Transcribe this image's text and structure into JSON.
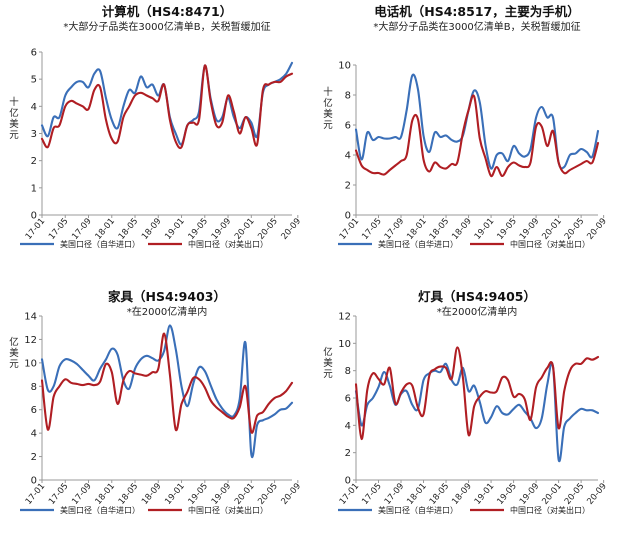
{
  "colors": {
    "us_series": "#3a6fb8",
    "cn_series": "#b01e23",
    "axis": "#999999"
  },
  "chart_data": [
    {
      "type": "line",
      "title": "计算机（HS4:8471）",
      "subtitle": "*大部分子品类在3000亿清单B，关税暂缓加征",
      "ylabel": "十亿美元",
      "ylim": [
        0,
        6
      ],
      "yticks": [
        "0",
        "1",
        "2",
        "3",
        "4",
        "5",
        "6"
      ],
      "xticks": [
        "17-01",
        "17-05",
        "17-09",
        "18-01",
        "18-05",
        "18-09",
        "19-01",
        "19-05",
        "19-09",
        "20-01",
        "20-05",
        "20-09"
      ],
      "series": [
        {
          "name": "美国口径（自华进口）",
          "color": "#3a6fb8",
          "values": [
            3.3,
            2.9,
            3.6,
            3.6,
            4.4,
            4.7,
            4.9,
            4.9,
            4.7,
            5.2,
            5.3,
            4.3,
            3.5,
            3.2,
            4.0,
            4.6,
            4.5,
            5.1,
            4.7,
            4.8,
            4.4,
            4.8,
            3.6,
            3.0,
            2.6,
            3.3,
            3.5,
            3.8,
            5.5,
            4.3,
            3.5,
            3.6,
            4.3,
            3.6,
            3.2,
            3.6,
            3.4,
            2.9,
            4.5,
            4.8,
            4.9,
            5.0,
            5.2,
            5.6
          ]
        },
        {
          "name": "中国口径（对美出口）",
          "color": "#b01e23",
          "values": [
            2.8,
            2.5,
            3.2,
            3.3,
            4.0,
            4.2,
            4.1,
            4.0,
            3.9,
            4.6,
            4.7,
            3.5,
            2.8,
            2.7,
            3.6,
            4.0,
            4.4,
            4.5,
            4.4,
            4.3,
            4.2,
            4.8,
            3.5,
            2.7,
            2.5,
            3.3,
            3.4,
            3.5,
            5.5,
            4.2,
            3.3,
            3.4,
            4.4,
            3.8,
            3.0,
            3.6,
            3.2,
            2.6,
            4.6,
            4.8,
            4.9,
            4.9,
            5.1,
            5.2
          ]
        }
      ]
    },
    {
      "type": "line",
      "title": "电话机（HS4:8517，主要为手机）",
      "subtitle": "*大部分子品类在3000亿清单B，关税暂缓加征",
      "ylabel": "十亿美元",
      "ylim": [
        0,
        10
      ],
      "yticks": [
        "0",
        "2",
        "4",
        "6",
        "8",
        "10"
      ],
      "xticks": [
        "17-01",
        "17-05",
        "17-09",
        "18-01",
        "18-05",
        "18-09",
        "19-01",
        "19-05",
        "19-09",
        "20-01",
        "20-05",
        "20-09"
      ],
      "series": [
        {
          "name": "美国口径（自华进口）",
          "color": "#3a6fb8",
          "values": [
            5.7,
            3.7,
            5.5,
            5.0,
            5.2,
            5.1,
            5.1,
            5.2,
            5.2,
            7.0,
            9.3,
            8.4,
            5.3,
            4.2,
            5.5,
            5.2,
            5.3,
            5.0,
            4.9,
            5.3,
            7.0,
            8.3,
            7.5,
            4.7,
            3.1,
            4.0,
            4.1,
            3.6,
            4.6,
            4.1,
            3.9,
            4.4,
            6.5,
            7.2,
            6.5,
            6.5,
            3.5,
            3.2,
            4.0,
            4.1,
            4.4,
            4.2,
            3.9,
            5.6
          ]
        },
        {
          "name": "中国口径（对美出口）",
          "color": "#b01e23",
          "values": [
            4.3,
            3.3,
            3.0,
            2.8,
            2.8,
            2.7,
            3.0,
            3.3,
            3.6,
            4.0,
            6.3,
            6.4,
            3.7,
            2.9,
            3.5,
            3.2,
            3.1,
            3.4,
            3.5,
            5.5,
            7.0,
            7.9,
            5.1,
            3.8,
            2.6,
            3.2,
            2.6,
            3.2,
            3.5,
            3.3,
            3.2,
            3.5,
            5.9,
            5.9,
            4.6,
            5.6,
            3.5,
            2.8,
            3.0,
            3.2,
            3.4,
            3.6,
            3.5,
            4.8
          ]
        }
      ]
    },
    {
      "type": "line",
      "title": "家具（HS4:9403）",
      "subtitle": "*在2000亿清单内",
      "ylabel": "亿美元",
      "ylim": [
        0,
        14
      ],
      "yticks": [
        "0",
        "2",
        "4",
        "6",
        "8",
        "10",
        "12",
        "14"
      ],
      "xticks": [
        "17-01",
        "17-05",
        "17-09",
        "18-01",
        "18-05",
        "18-09",
        "19-01",
        "19-05",
        "19-09",
        "20-01",
        "20-05",
        "20-09"
      ],
      "series": [
        {
          "name": "美国口径（自华进口）",
          "color": "#3a6fb8",
          "values": [
            10.3,
            7.7,
            8.0,
            9.7,
            10.3,
            10.2,
            9.9,
            9.4,
            8.9,
            8.5,
            9.5,
            10.3,
            11.2,
            10.7,
            8.5,
            7.8,
            9.5,
            10.3,
            10.6,
            10.4,
            10.2,
            11.0,
            13.2,
            11.2,
            8.0,
            6.3,
            8.2,
            9.6,
            9.3,
            8.1,
            6.9,
            6.1,
            5.6,
            5.5,
            6.9,
            11.7,
            2.2,
            4.7,
            5.1,
            5.3,
            5.6,
            6.0,
            6.1,
            6.6
          ]
        },
        {
          "name": "中国口径（对美出口）",
          "color": "#b01e23",
          "values": [
            8.5,
            4.3,
            7.1,
            8.0,
            8.6,
            8.3,
            8.2,
            8.1,
            8.2,
            8.1,
            8.4,
            9.9,
            9.2,
            6.5,
            8.5,
            9.3,
            9.1,
            9.0,
            8.9,
            9.2,
            9.5,
            12.5,
            9.0,
            4.3,
            6.5,
            7.5,
            8.7,
            8.6,
            7.9,
            6.8,
            6.2,
            5.8,
            5.4,
            5.3,
            6.2,
            8.0,
            4.1,
            5.5,
            5.8,
            6.5,
            7.0,
            7.2,
            7.6,
            8.3
          ]
        }
      ]
    },
    {
      "type": "line",
      "title": "灯具（HS4:9405）",
      "subtitle": "*在2000亿清单内",
      "ylabel": "亿美元",
      "ylim": [
        0,
        12
      ],
      "yticks": [
        "0",
        "2",
        "4",
        "6",
        "8",
        "10",
        "12"
      ],
      "xticks": [
        "17-01",
        "17-05",
        "17-09",
        "18-01",
        "18-05",
        "18-09",
        "19-01",
        "19-05",
        "19-09",
        "20-01",
        "20-05",
        "20-09"
      ],
      "series": [
        {
          "name": "美国口径（自华进口）",
          "color": "#3a6fb8",
          "values": [
            6.5,
            4.0,
            5.5,
            6.0,
            6.8,
            7.9,
            6.9,
            5.5,
            6.3,
            6.5,
            5.5,
            5.2,
            7.3,
            7.8,
            8.0,
            7.9,
            8.5,
            7.3,
            7.0,
            8.2,
            6.5,
            6.9,
            5.7,
            4.2,
            4.6,
            5.4,
            4.9,
            4.8,
            5.2,
            5.5,
            5.0,
            4.5,
            3.8,
            4.5,
            7.0,
            8.3,
            1.5,
            3.9,
            4.5,
            4.9,
            5.2,
            5.1,
            5.1,
            4.9
          ]
        },
        {
          "name": "中国口径（对美出口）",
          "color": "#b01e23",
          "values": [
            7.0,
            3.0,
            6.6,
            7.8,
            7.4,
            7.0,
            8.2,
            5.6,
            6.4,
            7.0,
            6.9,
            5.3,
            4.8,
            7.6,
            8.1,
            8.3,
            8.2,
            7.4,
            9.7,
            7.5,
            3.3,
            5.4,
            6.1,
            6.5,
            6.4,
            6.5,
            7.5,
            7.3,
            6.1,
            6.3,
            5.9,
            4.4,
            6.8,
            7.5,
            8.2,
            8.3,
            3.8,
            6.5,
            8.0,
            8.5,
            8.5,
            8.9,
            8.8,
            9.0
          ]
        }
      ]
    }
  ]
}
